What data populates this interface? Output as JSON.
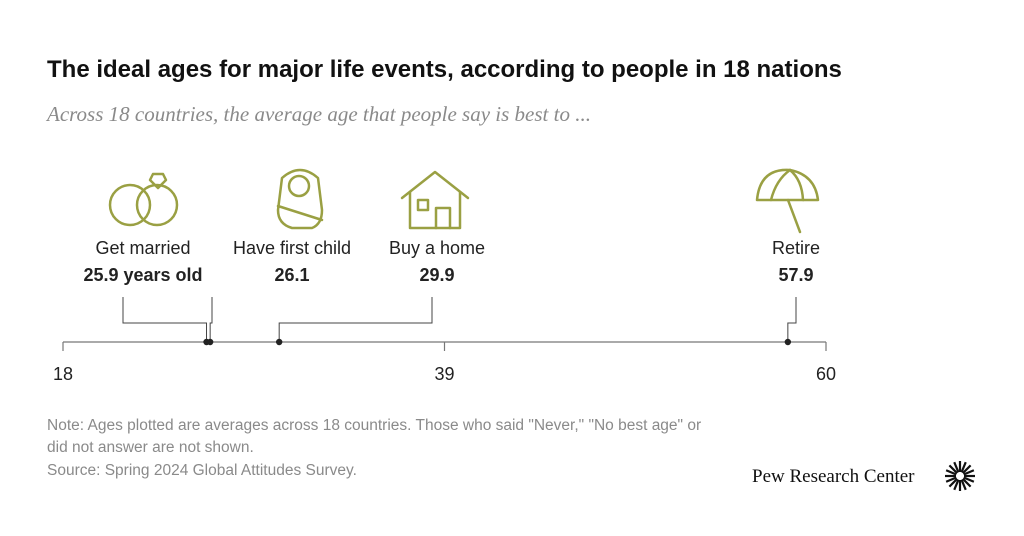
{
  "chart_data": {
    "type": "timeline",
    "title": "The ideal ages for major life events, according to people in 18 nations",
    "subtitle": "Across 18 countries, the average age that people say is best to ...",
    "categories": [
      "Get married",
      "Have first child",
      "Buy a home",
      "Retire"
    ],
    "values": [
      25.9,
      26.1,
      29.9,
      57.9
    ],
    "value_labels": [
      "25.9 years old",
      "26.1",
      "29.9",
      "57.9"
    ],
    "xlim": [
      18,
      60
    ],
    "xticks": [
      18,
      39,
      60
    ],
    "color": "#222222",
    "note": "Note: Ages plotted are averages across 18 countries. Those who said \"Never,\" \"No best age\" or did not answer are not shown.",
    "source": "Source: Spring 2024 Global Attitudes Survey.",
    "credit": "Pew Research Center"
  }
}
